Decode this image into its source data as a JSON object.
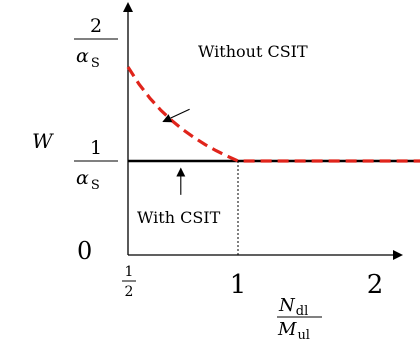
{
  "chart_data": {
    "type": "line",
    "title": "",
    "xlabel": {
      "num": "N",
      "num_sub": "dl",
      "den": "M",
      "den_sub": "ul"
    },
    "ylabel": "W",
    "xlim": [
      0.5,
      2.3
    ],
    "ylim": [
      0,
      2.2
    ],
    "x_ticks": [
      {
        "value": 0.5,
        "label_num": "1",
        "label_den": "2"
      },
      {
        "value": 1,
        "label": "1"
      },
      {
        "value": 2,
        "label": "2"
      }
    ],
    "y_ticks": [
      {
        "value": 0,
        "label": "0"
      },
      {
        "value": 1,
        "label_num": "1",
        "label_den": "α",
        "label_den_sub": "S"
      },
      {
        "value": 2,
        "label_num": "2",
        "label_den": "α",
        "label_den_sub": "S"
      }
    ],
    "series": [
      {
        "name": "With CSIT",
        "style": "solid",
        "color": "#000000",
        "x": [
          0.5,
          1,
          2
        ],
        "y": [
          1,
          1,
          1
        ]
      },
      {
        "name": "Without CSIT",
        "style": "dashed",
        "color": "#e0241b",
        "x": [
          0.5,
          0.55,
          0.6,
          0.65,
          0.7,
          0.75,
          0.8,
          0.85,
          0.9,
          0.95,
          1,
          2
        ],
        "y": [
          2,
          1.818,
          1.667,
          1.538,
          1.429,
          1.333,
          1.25,
          1.176,
          1.111,
          1.053,
          1,
          1
        ]
      }
    ],
    "reference_line": {
      "x": 1,
      "y_from": 0,
      "y_to": 1,
      "style": "dotted"
    },
    "annotations": [
      {
        "text": "Without CSIT",
        "arrow_from": [
          0.78,
          1.55
        ],
        "arrow_to": [
          0.66,
          1.42
        ]
      },
      {
        "text": "With CSIT",
        "arrow_from": [
          0.74,
          0.64
        ],
        "arrow_to": [
          0.74,
          0.92
        ]
      }
    ],
    "grid": false,
    "legend": "none"
  }
}
